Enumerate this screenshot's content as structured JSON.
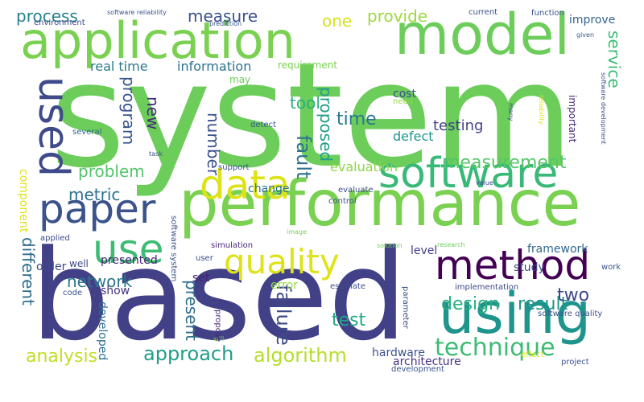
{
  "words": [
    {
      "text": "system",
      "color": "#6ccd5a",
      "vertical": false
    },
    {
      "text": "based",
      "color": "#424086",
      "vertical": false
    },
    {
      "text": "performance",
      "color": "#7ad151",
      "vertical": false
    },
    {
      "text": "application",
      "color": "#7ad151",
      "vertical": false
    },
    {
      "text": "model",
      "color": "#6ccd5a",
      "vertical": false
    },
    {
      "text": "using",
      "color": "#1f948c",
      "vertical": false
    },
    {
      "text": "software",
      "color": "#38b977",
      "vertical": false
    },
    {
      "text": "method",
      "color": "#440154",
      "vertical": false
    },
    {
      "text": "data",
      "color": "#dde318",
      "vertical": false
    },
    {
      "text": "paper",
      "color": "#3b528b",
      "vertical": false
    },
    {
      "text": "quality",
      "color": "#dde318",
      "vertical": false
    },
    {
      "text": "use",
      "color": "#3fbc73",
      "vertical": false
    },
    {
      "text": "used",
      "color": "#3e4a89",
      "vertical": true
    },
    {
      "text": "technique",
      "color": "#3dbc74",
      "vertical": false
    },
    {
      "text": "approach",
      "color": "#1f9e89",
      "vertical": false
    },
    {
      "text": "algorithm",
      "color": "#b5de2b",
      "vertical": false
    },
    {
      "text": "analysis",
      "color": "#c0df25",
      "vertical": false
    },
    {
      "text": "design",
      "color": "#29af7f",
      "vertical": false
    },
    {
      "text": "result",
      "color": "#1f968b",
      "vertical": false
    },
    {
      "text": "measurement",
      "color": "#56c667",
      "vertical": false
    },
    {
      "text": "process",
      "color": "#26828e",
      "vertical": false
    },
    {
      "text": "measure",
      "color": "#3b528b",
      "vertical": false
    },
    {
      "text": "provide",
      "color": "#9dd93b",
      "vertical": false
    },
    {
      "text": "one",
      "color": "#d8e219",
      "vertical": false
    },
    {
      "text": "information",
      "color": "#2c728e",
      "vertical": false
    },
    {
      "text": "real time",
      "color": "#2a788e",
      "vertical": false
    },
    {
      "text": "service",
      "color": "#3dbc74",
      "vertical": true
    },
    {
      "text": "improve",
      "color": "#33628d",
      "vertical": false
    },
    {
      "text": "tool",
      "color": "#29af7f",
      "vertical": false
    },
    {
      "text": "time",
      "color": "#2a788e",
      "vertical": false
    },
    {
      "text": "testing",
      "color": "#414487",
      "vertical": false
    },
    {
      "text": "defect",
      "color": "#1f968b",
      "vertical": false
    },
    {
      "text": "cost",
      "color": "#3b528b",
      "vertical": false
    },
    {
      "text": "need",
      "color": "#93d741",
      "vertical": false
    },
    {
      "text": "problem",
      "color": "#52c569",
      "vertical": false
    },
    {
      "text": "metric",
      "color": "#2c728e",
      "vertical": false
    },
    {
      "text": "program",
      "color": "#39568c",
      "vertical": true
    },
    {
      "text": "new",
      "color": "#472d7b",
      "vertical": true
    },
    {
      "text": "number",
      "color": "#3b528b",
      "vertical": true
    },
    {
      "text": "fault",
      "color": "#2c728e",
      "vertical": true
    },
    {
      "text": "proposed",
      "color": "#1f9e89",
      "vertical": true
    },
    {
      "text": "network",
      "color": "#2a788e",
      "vertical": false
    },
    {
      "text": "present",
      "color": "#2e6e8e",
      "vertical": true
    },
    {
      "text": "failure",
      "color": "#3e4a89",
      "vertical": true
    },
    {
      "text": "test",
      "color": "#22a884",
      "vertical": false
    },
    {
      "text": "two",
      "color": "#3e4a89",
      "vertical": false
    },
    {
      "text": "different",
      "color": "#2e6e8e",
      "vertical": true
    },
    {
      "text": "evaluation",
      "color": "#8ed645",
      "vertical": false
    },
    {
      "text": "change",
      "color": "#2c728e",
      "vertical": false
    },
    {
      "text": "presented",
      "color": "#482475",
      "vertical": false
    },
    {
      "text": "framework",
      "color": "#31688e",
      "vertical": false
    },
    {
      "text": "level",
      "color": "#424086",
      "vertical": false
    },
    {
      "text": "study",
      "color": "#404688",
      "vertical": false
    },
    {
      "text": "order",
      "color": "#3f4788",
      "vertical": false
    },
    {
      "text": "well",
      "color": "#3e4989",
      "vertical": false
    },
    {
      "text": "show",
      "color": "#46327e",
      "vertical": false
    },
    {
      "text": "developed",
      "color": "#2d708e",
      "vertical": true
    },
    {
      "text": "error",
      "color": "#95d840",
      "vertical": false
    },
    {
      "text": "set",
      "color": "#482173",
      "vertical": false
    },
    {
      "text": "component",
      "color": "#dde318",
      "vertical": true
    },
    {
      "text": "hardware",
      "color": "#3b528b",
      "vertical": false
    },
    {
      "text": "architecture",
      "color": "#46337f",
      "vertical": false
    },
    {
      "text": "software reliability",
      "color": "#3b528b",
      "vertical": false
    },
    {
      "text": "prediction",
      "color": "#3b528b",
      "vertical": false
    },
    {
      "text": "environment",
      "color": "#3e4a89",
      "vertical": false
    },
    {
      "text": "current",
      "color": "#3b528b",
      "vertical": false
    },
    {
      "text": "function",
      "color": "#3b528b",
      "vertical": false
    },
    {
      "text": "given",
      "color": "#39568c",
      "vertical": false
    },
    {
      "text": "requirement",
      "color": "#7ad151",
      "vertical": false
    },
    {
      "text": "may",
      "color": "#6ccd5a",
      "vertical": false
    },
    {
      "text": "first",
      "color": "#7ad151",
      "vertical": false
    },
    {
      "text": "several",
      "color": "#31688e",
      "vertical": false
    },
    {
      "text": "task",
      "color": "#3b528b",
      "vertical": false
    },
    {
      "text": "detect",
      "color": "#39568c",
      "vertical": false
    },
    {
      "text": "support",
      "color": "#39568c",
      "vertical": false
    },
    {
      "text": "evaluate",
      "color": "#3e4a89",
      "vertical": false
    },
    {
      "text": "control",
      "color": "#3b528b",
      "vertical": false
    },
    {
      "text": "value",
      "color": "#3b528b",
      "vertical": false
    },
    {
      "text": "image",
      "color": "#7ad151",
      "vertical": false
    },
    {
      "text": "simulation",
      "color": "#482878",
      "vertical": false
    },
    {
      "text": "user",
      "color": "#3e4a89",
      "vertical": false
    },
    {
      "text": "estimate",
      "color": "#3e4a89",
      "vertical": false
    },
    {
      "text": "applied",
      "color": "#3e4a89",
      "vertical": false
    },
    {
      "text": "solution",
      "color": "#6ccd5a",
      "vertical": false
    },
    {
      "text": "research",
      "color": "#6ccd5a",
      "vertical": false
    },
    {
      "text": "implementation",
      "color": "#3e4a89",
      "vertical": false
    },
    {
      "text": "work",
      "color": "#39568c",
      "vertical": false
    },
    {
      "text": "software quality",
      "color": "#3b528b",
      "vertical": false
    },
    {
      "text": "code",
      "color": "#3b528b",
      "vertical": false
    },
    {
      "text": "will",
      "color": "#7ad151",
      "vertical": false
    },
    {
      "text": "effect",
      "color": "#dde318",
      "vertical": false
    },
    {
      "text": "development",
      "color": "#3b528b",
      "vertical": false
    },
    {
      "text": "project",
      "color": "#3b528b",
      "vertical": false
    },
    {
      "text": "software system",
      "color": "#3b528b",
      "vertical": true
    },
    {
      "text": "propose",
      "color": "#482878",
      "vertical": true
    },
    {
      "text": "parameter",
      "color": "#3b528b",
      "vertical": true
    },
    {
      "text": "important",
      "color": "#482878",
      "vertical": true
    },
    {
      "text": "many",
      "color": "#3e4a89",
      "vertical": true
    },
    {
      "text": "reliability",
      "color": "#dde318",
      "vertical": true
    },
    {
      "text": "software development",
      "color": "#3b528b",
      "vertical": true
    }
  ]
}
